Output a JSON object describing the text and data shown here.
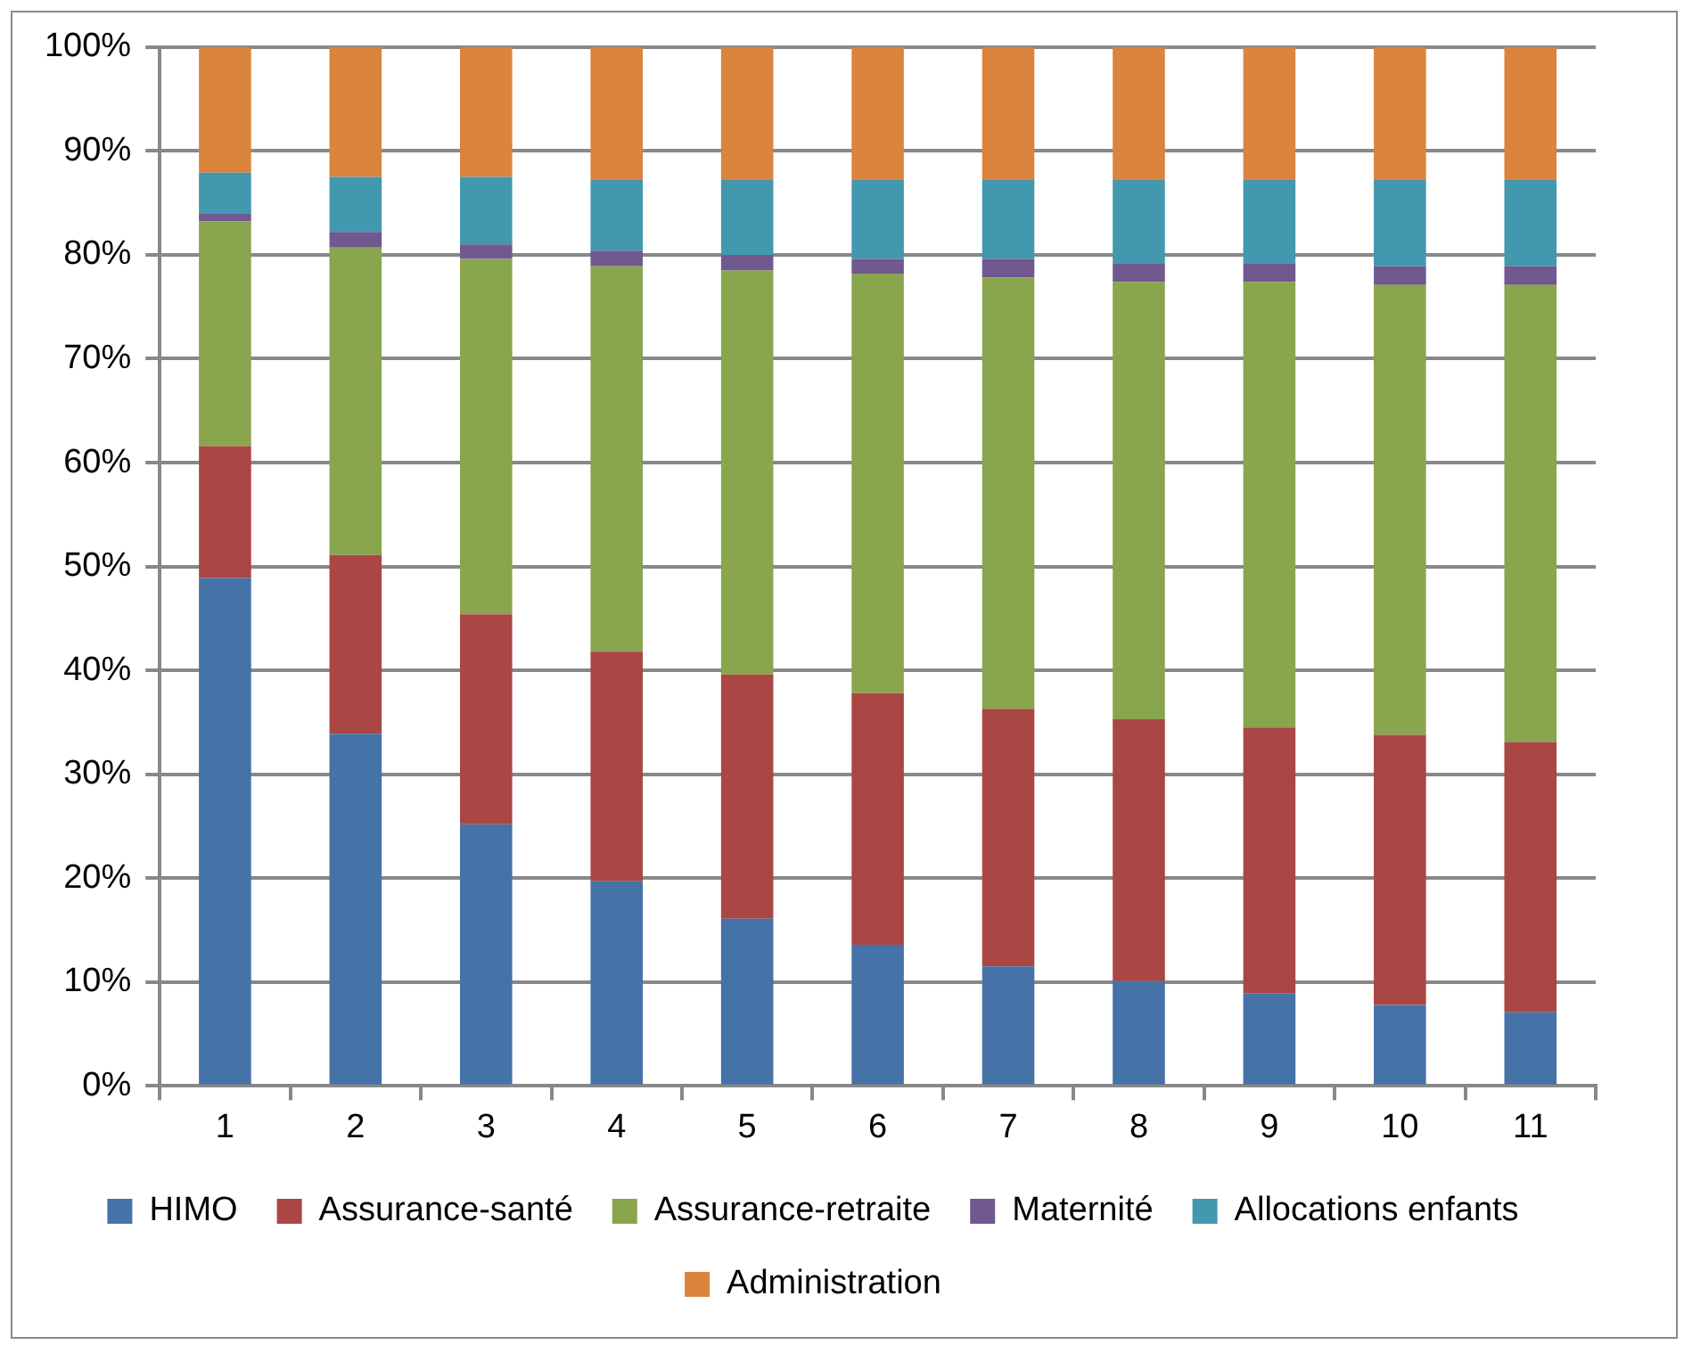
{
  "chart_data": {
    "type": "bar",
    "stacked": true,
    "categories": [
      "1",
      "2",
      "3",
      "4",
      "5",
      "6",
      "7",
      "8",
      "9",
      "10",
      "11"
    ],
    "series": [
      {
        "name": "HIMO",
        "color": "#4572a7",
        "values": [
          48.9,
          33.9,
          25.2,
          19.7,
          16.1,
          13.6,
          11.5,
          10.1,
          8.9,
          7.8,
          7.1
        ]
      },
      {
        "name": "Assurance-santé",
        "color": "#aa4643",
        "values": [
          12.7,
          17.2,
          20.2,
          22.1,
          23.5,
          24.2,
          24.8,
          25.2,
          25.6,
          26.0,
          26.0
        ]
      },
      {
        "name": "Assurance-retraite",
        "color": "#89a54e",
        "values": [
          21.6,
          29.6,
          34.2,
          37.1,
          38.9,
          40.4,
          41.5,
          42.1,
          42.9,
          43.3,
          44.0
        ]
      },
      {
        "name": "Maternité",
        "color": "#71588f",
        "values": [
          0.8,
          1.5,
          1.4,
          1.5,
          1.5,
          1.4,
          1.8,
          1.8,
          1.8,
          1.8,
          1.8
        ]
      },
      {
        "name": "Allocations enfants",
        "color": "#4198af",
        "values": [
          3.9,
          5.3,
          6.5,
          6.8,
          7.2,
          7.6,
          7.6,
          8.0,
          8.0,
          8.3,
          8.3
        ]
      },
      {
        "name": "Administration",
        "color": "#db843d",
        "values": [
          12.1,
          12.5,
          12.5,
          12.8,
          12.8,
          12.8,
          12.8,
          12.8,
          12.8,
          12.8,
          12.8
        ]
      }
    ],
    "ylim": [
      0,
      100
    ],
    "yticks": [
      {
        "value": 0,
        "label": "0%"
      },
      {
        "value": 10,
        "label": "10%"
      },
      {
        "value": 20,
        "label": "20%"
      },
      {
        "value": 30,
        "label": "30%"
      },
      {
        "value": 40,
        "label": "40%"
      },
      {
        "value": 50,
        "label": "50%"
      },
      {
        "value": 60,
        "label": "60%"
      },
      {
        "value": 70,
        "label": "70%"
      },
      {
        "value": 80,
        "label": "80%"
      },
      {
        "value": 90,
        "label": "90%"
      },
      {
        "value": 100,
        "label": "100%"
      }
    ],
    "grid": "y",
    "legend": "bottom"
  }
}
